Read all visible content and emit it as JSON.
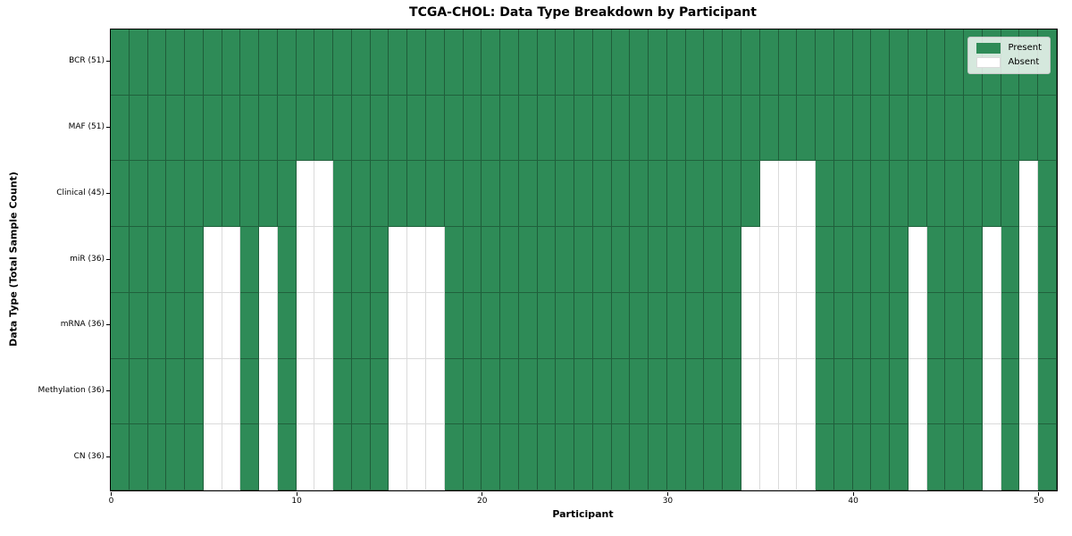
{
  "chart_data": {
    "type": "heatmap",
    "title": "TCGA-CHOL: Data Type Breakdown by Participant",
    "xlabel": "Participant",
    "ylabel": "Data Type (Total Sample Count)",
    "x_tick_labels": [
      "0",
      "10",
      "20",
      "30",
      "40",
      "50"
    ],
    "x_tick_values": [
      0,
      10,
      20,
      30,
      40,
      50
    ],
    "x_range": [
      0,
      51
    ],
    "n_participants": 51,
    "grid": true,
    "legend_position": "upper right",
    "colors": {
      "present": "#2E8B57",
      "absent": "#FFFFFF"
    },
    "legend": [
      {
        "label": "Present",
        "color": "#2E8B57"
      },
      {
        "label": "Absent",
        "color": "#FFFFFF"
      }
    ],
    "rows": [
      {
        "label": "BCR (51)",
        "name": "BCR",
        "total": 51,
        "absent_participants": []
      },
      {
        "label": "MAF (51)",
        "name": "MAF",
        "total": 51,
        "absent_participants": []
      },
      {
        "label": "Clinical (45)",
        "name": "Clinical",
        "total": 45,
        "absent_participants": [
          10,
          11,
          35,
          36,
          37,
          49
        ]
      },
      {
        "label": "miR (36)",
        "name": "miR",
        "total": 36,
        "absent_participants": [
          5,
          6,
          8,
          10,
          11,
          15,
          16,
          17,
          34,
          35,
          36,
          37,
          43,
          47,
          49
        ]
      },
      {
        "label": "mRNA (36)",
        "name": "mRNA",
        "total": 36,
        "absent_participants": [
          5,
          6,
          8,
          10,
          11,
          15,
          16,
          17,
          34,
          35,
          36,
          37,
          43,
          47,
          49
        ]
      },
      {
        "label": "Methylation (36)",
        "name": "Methylation",
        "total": 36,
        "absent_participants": [
          5,
          6,
          8,
          10,
          11,
          15,
          16,
          17,
          34,
          35,
          36,
          37,
          43,
          47,
          49
        ]
      },
      {
        "label": "CN (36)",
        "name": "CN",
        "total": 36,
        "absent_participants": [
          5,
          6,
          8,
          10,
          11,
          15,
          16,
          17,
          34,
          35,
          36,
          37,
          43,
          47,
          49
        ]
      }
    ]
  }
}
